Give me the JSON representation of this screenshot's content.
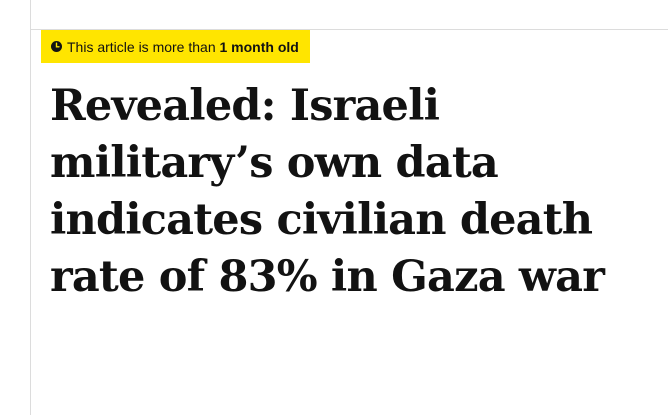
{
  "article_age": {
    "prefix": "This article is more than ",
    "age": "1 month old",
    "icon": "clock-icon",
    "background_color": "#ffe500"
  },
  "headline": {
    "text": "Revealed: Israeli military’s own data indicates civilian death rate of 83% in Gaza war"
  }
}
